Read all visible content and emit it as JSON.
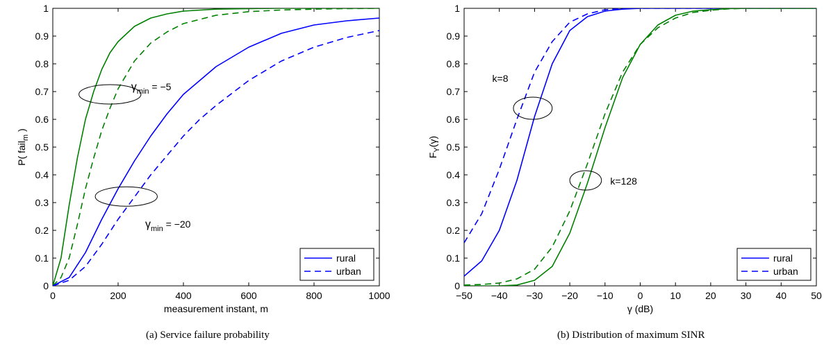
{
  "captions": {
    "a": "(a) Service failure probability",
    "b": "(b) Distribution of maximum SINR"
  },
  "colors": {
    "rural_blue": "#0000ff",
    "rural_green": "#008000"
  },
  "chart_data": [
    {
      "type": "line",
      "title": "",
      "xlabel": "measurement instant, m",
      "ylabel": {
        "main": "P( fail",
        "sub": "m",
        "close": " )"
      },
      "xlim": [
        0,
        1000
      ],
      "ylim": [
        0,
        1
      ],
      "xticks": [
        0,
        200,
        400,
        600,
        800,
        1000
      ],
      "yticks": [
        0,
        0.1,
        0.2,
        0.3,
        0.4,
        0.5,
        0.6,
        0.7,
        0.8,
        0.9,
        1
      ],
      "grid": false,
      "legend": {
        "position": "bottom-right",
        "entries": [
          {
            "label": "rural",
            "style": "solid"
          },
          {
            "label": "urban",
            "style": "dashed"
          }
        ]
      },
      "series": [
        {
          "color": "#008000",
          "style": "solid",
          "x": [
            0,
            25,
            50,
            75,
            100,
            125,
            150,
            175,
            200,
            250,
            300,
            350,
            400,
            500,
            600,
            700,
            800,
            900,
            1000
          ],
          "y": [
            0,
            0.1,
            0.29,
            0.46,
            0.6,
            0.7,
            0.78,
            0.84,
            0.88,
            0.935,
            0.965,
            0.98,
            0.99,
            0.997,
            0.999,
            1,
            1,
            1,
            1
          ]
        },
        {
          "color": "#008000",
          "style": "dashed",
          "x": [
            0,
            25,
            50,
            75,
            100,
            125,
            150,
            175,
            200,
            250,
            300,
            350,
            400,
            450,
            500,
            600,
            700,
            800,
            900,
            1000
          ],
          "y": [
            0,
            0.03,
            0.1,
            0.22,
            0.35,
            0.46,
            0.56,
            0.64,
            0.71,
            0.81,
            0.875,
            0.915,
            0.945,
            0.96,
            0.975,
            0.988,
            0.994,
            0.997,
            0.999,
            1
          ]
        },
        {
          "color": "#0000ff",
          "style": "solid",
          "x": [
            0,
            50,
            100,
            150,
            200,
            250,
            300,
            350,
            400,
            450,
            500,
            600,
            700,
            800,
            900,
            1000
          ],
          "y": [
            0,
            0.03,
            0.12,
            0.24,
            0.35,
            0.45,
            0.54,
            0.62,
            0.69,
            0.74,
            0.79,
            0.86,
            0.91,
            0.94,
            0.955,
            0.965
          ]
        },
        {
          "color": "#0000ff",
          "style": "dashed",
          "x": [
            0,
            50,
            100,
            150,
            200,
            250,
            300,
            350,
            400,
            450,
            500,
            600,
            700,
            800,
            900,
            1000
          ],
          "y": [
            0,
            0.02,
            0.07,
            0.15,
            0.24,
            0.32,
            0.4,
            0.47,
            0.54,
            0.6,
            0.65,
            0.74,
            0.81,
            0.86,
            0.895,
            0.92
          ]
        }
      ],
      "annotations": [
        {
          "symbol": "γ",
          "sub": "min",
          "rest": " = −5",
          "x": 240,
          "y": 0.705,
          "ellipse": {
            "cx": 175,
            "cy": 0.69,
            "rx": 95,
            "ry": 0.035
          }
        },
        {
          "symbol": "γ",
          "sub": "min",
          "rest": " = −20",
          "x": 283,
          "y": 0.21,
          "ellipse": {
            "cx": 225,
            "cy": 0.322,
            "rx": 95,
            "ry": 0.035
          }
        }
      ]
    },
    {
      "type": "line",
      "title": "",
      "xlabel": "γ (dB)",
      "ylabel": {
        "main": "F",
        "sub": "Y",
        "close": "(γ)"
      },
      "xlim": [
        -50,
        50
      ],
      "ylim": [
        0,
        1
      ],
      "xticks": [
        -50,
        -40,
        -30,
        -20,
        -10,
        0,
        10,
        20,
        30,
        40,
        50
      ],
      "xticklabels": [
        "−50",
        "−40",
        "−30",
        "−20",
        "−10",
        "0",
        "10",
        "20",
        "30",
        "40",
        "50"
      ],
      "yticks": [
        0,
        0.1,
        0.2,
        0.3,
        0.4,
        0.5,
        0.6,
        0.7,
        0.8,
        0.9,
        1
      ],
      "grid": false,
      "legend": {
        "position": "bottom-right",
        "entries": [
          {
            "label": "rural",
            "style": "solid"
          },
          {
            "label": "urban",
            "style": "dashed"
          }
        ]
      },
      "series": [
        {
          "color": "#0000ff",
          "style": "solid",
          "x": [
            -50,
            -45,
            -40,
            -35,
            -30,
            -25,
            -20,
            -15,
            -10,
            -5,
            0,
            10,
            20,
            30,
            40,
            50
          ],
          "y": [
            0.035,
            0.09,
            0.2,
            0.38,
            0.61,
            0.8,
            0.92,
            0.97,
            0.99,
            0.997,
            1,
            1,
            1,
            1,
            1,
            1
          ]
        },
        {
          "color": "#0000ff",
          "style": "dashed",
          "x": [
            -50,
            -45,
            -40,
            -35,
            -30,
            -25,
            -20,
            -15,
            -10,
            -5,
            0,
            10,
            20,
            30,
            40,
            50
          ],
          "y": [
            0.155,
            0.26,
            0.42,
            0.6,
            0.77,
            0.88,
            0.95,
            0.98,
            0.995,
            0.999,
            1,
            1,
            1,
            1,
            1,
            1
          ]
        },
        {
          "color": "#008000",
          "style": "solid",
          "x": [
            -50,
            -40,
            -35,
            -30,
            -25,
            -20,
            -15,
            -10,
            -5,
            0,
            5,
            10,
            15,
            20,
            25,
            30,
            40,
            50
          ],
          "y": [
            0,
            0,
            0.003,
            0.02,
            0.07,
            0.19,
            0.37,
            0.57,
            0.75,
            0.87,
            0.94,
            0.975,
            0.99,
            0.995,
            0.999,
            1,
            1,
            1
          ]
        },
        {
          "color": "#008000",
          "style": "dashed",
          "x": [
            -50,
            -45,
            -40,
            -35,
            -30,
            -25,
            -20,
            -15,
            -10,
            -5,
            0,
            5,
            10,
            15,
            20,
            25,
            30,
            40,
            50
          ],
          "y": [
            0.003,
            0.005,
            0.01,
            0.025,
            0.06,
            0.14,
            0.27,
            0.44,
            0.62,
            0.77,
            0.87,
            0.93,
            0.965,
            0.985,
            0.993,
            0.998,
            1,
            1,
            1
          ]
        }
      ],
      "annotations": [
        {
          "text": "k=8",
          "x": -42,
          "y": 0.735,
          "ellipse": {
            "cx": -30.5,
            "cy": 0.64,
            "rx": 5.5,
            "ry": 0.04
          }
        },
        {
          "text": "k=128",
          "x": -8.5,
          "y": 0.365,
          "ellipse": {
            "cx": -15.5,
            "cy": 0.38,
            "rx": 4.5,
            "ry": 0.035
          }
        }
      ]
    }
  ]
}
